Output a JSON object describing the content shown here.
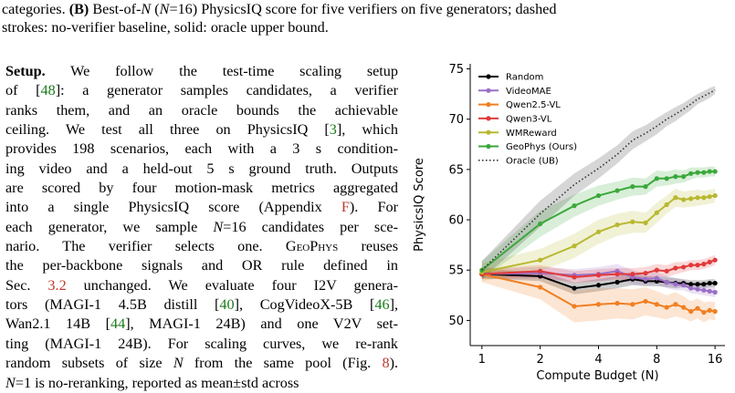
{
  "caption": {
    "line1_prefix": "categories. ",
    "panel_label": "(B)",
    "line1_rest_a": " Best-of-",
    "n_var": "N",
    "line1_paren_open": " (",
    "line1_paren_n": "N",
    "line1_eq": "=16) PhysicsIQ score for five verifiers on five generators; dashed",
    "line2": "strokes: no-verifier baseline, solid: oracle upper bound."
  },
  "body": {
    "heading": "Setup.",
    "l1_rest": " We follow the test-time scaling setup",
    "l2_a": "of [",
    "l2_cite": "48",
    "l2_b": "]: a generator samples candidates, a verifier",
    "l3": "ranks them, and an oracle bounds the achievable",
    "l4_a": "ceiling. We test all three on PhysicsIQ [",
    "l4_cite": "3",
    "l4_b": "], which",
    "l5": "provides 198 scenarios, each with a 3 s condition-",
    "l6": "ing video and a held-out 5 s ground truth. Outputs",
    "l7": "are scored by four motion-mask metrics aggregated",
    "l8_a": "into a single PhysicsIQ score (Appendix ",
    "l8_ref": "F",
    "l8_b": "). For",
    "l9_a": "each generator, we sample ",
    "l9_n": "N",
    "l9_b": "=16 candidates per sce-",
    "l10": "nario. The verifier selects one.",
    "l10_sc": "GeoPhys",
    "l10_b": " reuses",
    "l11": "the per-backbone signals and OR rule defined in",
    "l12_a": "Sec. ",
    "l12_ref": "3.2",
    "l12_b": " unchanged. We evaluate four I2V genera-",
    "l13_a": "tors (MAGI-1 4.5B distill [",
    "l13_c1": "40",
    "l13_b": "], CogVideoX-5B [",
    "l13_c2": "46",
    "l13_c": "],",
    "l14_a": "Wan2.1 14B [",
    "l14_c1": "44",
    "l14_b": "], MAGI-1 24B) and one V2V set-",
    "l15": "ting (MAGI-1 24B). For scaling curves, we re-rank",
    "l16_a": "random subsets of size ",
    "l16_n": "N",
    "l16_b": " from the same pool (Fig. ",
    "l16_ref": "8",
    "l16_c": ").",
    "l17_n": "N",
    "l17": "=1 is no-reranking, reported as mean±std across"
  },
  "chart_data": {
    "type": "line",
    "xlabel": "Compute Budget (N)",
    "ylabel": "PhysicsIQ Score",
    "x_scale": "log2",
    "x_ticks": [
      1,
      2,
      4,
      8,
      16
    ],
    "x_tick_labels": [
      "1",
      "2",
      "4",
      "8",
      "16"
    ],
    "y_ticks": [
      50,
      55,
      60,
      65,
      70,
      75
    ],
    "y_tick_labels": [
      "50",
      "55",
      "60",
      "65",
      "70",
      "75"
    ],
    "xlim": [
      0.87,
      18.0
    ],
    "ylim": [
      47.5,
      75.5
    ],
    "legend_position": "upper-left",
    "x": [
      1,
      2,
      3,
      4,
      5,
      6,
      7,
      8,
      9,
      10,
      11,
      12,
      13,
      14,
      15,
      16
    ],
    "series": [
      {
        "name": "Random",
        "color": "#000000",
        "style": "solid",
        "marker": true,
        "values": [
          54.6,
          54.4,
          53.2,
          53.5,
          53.8,
          54.1,
          53.9,
          53.9,
          53.8,
          53.7,
          53.7,
          53.6,
          53.6,
          53.6,
          53.7,
          53.7
        ],
        "band": [
          0.4,
          0.5,
          0.6,
          0.6,
          0.6,
          0.6,
          0.5,
          0.5,
          0.5,
          0.5,
          0.4,
          0.4,
          0.4,
          0.4,
          0.4,
          0.4
        ]
      },
      {
        "name": "VideoMAE",
        "color": "#9b6fc7",
        "style": "solid",
        "marker": true,
        "values": [
          54.6,
          54.7,
          54.5,
          54.6,
          54.9,
          54.3,
          54.1,
          54.2,
          53.8,
          53.6,
          53.5,
          53.2,
          53.1,
          53.0,
          52.9,
          52.8
        ],
        "band": [
          0.5,
          0.6,
          0.6,
          0.7,
          0.7,
          0.7,
          0.6,
          0.6,
          0.6,
          0.6,
          0.5,
          0.5,
          0.5,
          0.5,
          0.5,
          0.5
        ]
      },
      {
        "name": "Qwen2.5-VL",
        "color": "#f07f22",
        "style": "solid",
        "marker": true,
        "values": [
          54.6,
          53.3,
          51.4,
          51.6,
          51.7,
          51.6,
          51.9,
          51.6,
          51.3,
          51.6,
          51.3,
          50.9,
          51.2,
          50.8,
          51.0,
          50.9
        ],
        "band": [
          0.8,
          1.2,
          1.6,
          1.6,
          1.5,
          1.5,
          1.4,
          1.3,
          1.2,
          1.2,
          1.1,
          1.0,
          1.0,
          1.0,
          0.9,
          0.9
        ]
      },
      {
        "name": "Qwen3-VL",
        "color": "#e03a3a",
        "style": "solid",
        "marker": true,
        "values": [
          54.6,
          54.9,
          54.3,
          54.5,
          54.6,
          54.6,
          54.7,
          55.0,
          54.9,
          55.2,
          55.3,
          55.5,
          55.5,
          55.6,
          55.8,
          56.0
        ],
        "band": [
          0.5,
          0.6,
          0.6,
          0.6,
          0.6,
          0.6,
          0.6,
          0.6,
          0.6,
          0.6,
          0.5,
          0.5,
          0.5,
          0.5,
          0.5,
          0.5
        ]
      },
      {
        "name": "WMReward",
        "color": "#b8b830",
        "style": "solid",
        "marker": true,
        "values": [
          54.8,
          56.0,
          57.4,
          58.8,
          59.5,
          59.8,
          59.7,
          60.7,
          61.5,
          62.2,
          62.0,
          62.1,
          62.2,
          62.2,
          62.3,
          62.4
        ],
        "band": [
          0.9,
          1.1,
          1.2,
          1.2,
          1.1,
          1.1,
          1.0,
          1.0,
          0.9,
          0.9,
          0.8,
          0.8,
          0.8,
          0.7,
          0.7,
          0.7
        ]
      },
      {
        "name": "GeoPhys (Ours)",
        "color": "#3aa83a",
        "style": "solid",
        "marker": true,
        "values": [
          55.0,
          59.6,
          61.4,
          62.4,
          62.9,
          63.3,
          63.3,
          64.1,
          64.1,
          64.3,
          64.3,
          64.6,
          64.7,
          64.7,
          64.8,
          64.8
        ],
        "band": [
          0.9,
          1.3,
          1.1,
          1.0,
          0.9,
          0.9,
          0.8,
          0.8,
          0.7,
          0.7,
          0.6,
          0.6,
          0.5,
          0.5,
          0.5,
          0.5
        ]
      },
      {
        "name": "Oracle (UB)",
        "color": "#333333",
        "style": "dotted",
        "marker": false,
        "values": [
          55.0,
          60.6,
          63.5,
          65.1,
          66.5,
          67.9,
          68.6,
          69.3,
          70.0,
          70.5,
          71.0,
          71.5,
          72.0,
          72.3,
          72.6,
          72.9
        ],
        "band": [
          0.9,
          1.3,
          1.1,
          1.0,
          0.9,
          0.9,
          0.8,
          0.8,
          0.7,
          0.7,
          0.6,
          0.6,
          0.5,
          0.5,
          0.5,
          0.4
        ]
      }
    ]
  }
}
